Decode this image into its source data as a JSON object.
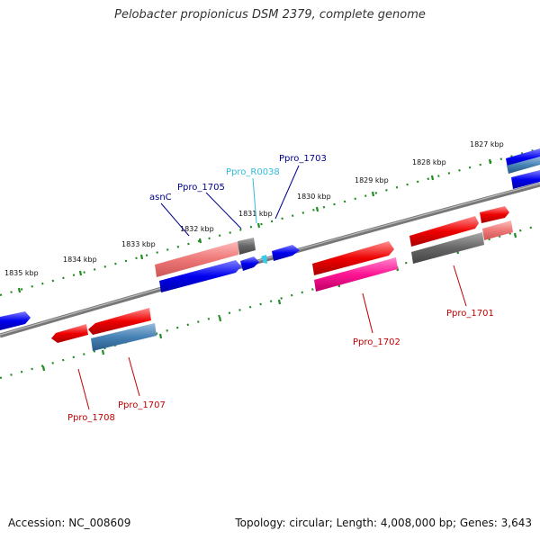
{
  "title": "Pelobacter propionicus DSM 2379, complete genome",
  "footer": {
    "accession": "Accession: NC_008609",
    "summary": "Topology: circular; Length: 4,008,000 bp; Genes: 3,643"
  },
  "scale": {
    "ticks": [
      "1827 kbp",
      "1828 kbp",
      "1829 kbp",
      "1830 kbp",
      "1831 kbp",
      "1832 kbp",
      "1833 kbp",
      "1834 kbp",
      "1835 kbp"
    ]
  },
  "genes": {
    "upper": [
      {
        "label": "Ppro_1703",
        "color": "#00008b"
      },
      {
        "label": "Ppro_R0038",
        "color": "#33bbdd"
      },
      {
        "label": "Ppro_1705",
        "color": "#00008b"
      },
      {
        "label": "asnC",
        "color": "#00008b"
      }
    ],
    "lower": [
      {
        "label": "Ppro_1701",
        "color": "#c00000"
      },
      {
        "label": "Ppro_1702",
        "color": "#c00000"
      },
      {
        "label": "Ppro_1707",
        "color": "#c00000"
      },
      {
        "label": "Ppro_1708",
        "color": "#c00000"
      }
    ]
  },
  "colors": {
    "backbone": "#808080",
    "tick": "#228b22",
    "forward": "#0000ee",
    "reverse_red": "#ee0000",
    "pink": "#ee6688",
    "gray": "#666666",
    "magenta": "#ff1493",
    "steel": "#4682b4",
    "cyan": "#33ccee"
  }
}
